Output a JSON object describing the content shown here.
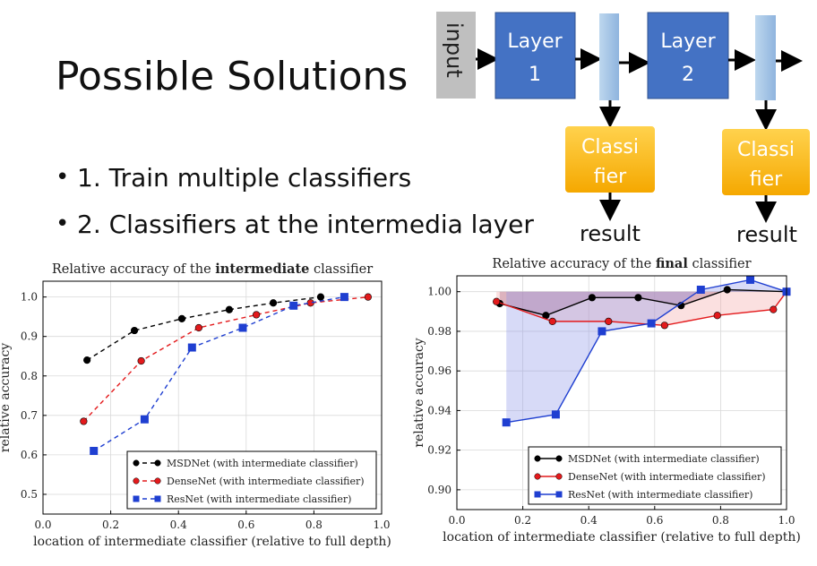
{
  "slide": {
    "title": "Possible Solutions",
    "bullets": [
      "1. Train multiple classifiers",
      "2. Classifiers at the intermedia layer"
    ]
  },
  "diagram": {
    "input_label": "input",
    "layer1_line1": "Layer",
    "layer1_line2": "1",
    "layer2_line1": "Layer",
    "layer2_line2": "2",
    "classifier_line1": "Classi",
    "classifier_line2": "fier",
    "result_label": "result",
    "colors": {
      "layer": "#4472c4",
      "classifier": "#ffc000",
      "input": "#bfbfbf",
      "connector": "#9dc3e6"
    }
  },
  "chart_data": [
    {
      "type": "line",
      "title_prefix": "Relative accuracy of the ",
      "title_bold": "intermediate",
      "title_suffix": " classifier",
      "xlabel": "location of intermediate classifier (relative to full depth)",
      "ylabel": "relative accuracy",
      "xlim": [
        0.0,
        1.0
      ],
      "ylim": [
        0.45,
        1.04
      ],
      "xticks": [
        "0.0",
        "0.2",
        "0.4",
        "0.6",
        "0.8",
        "1.0"
      ],
      "yticks": [
        "0.5",
        "0.6",
        "0.7",
        "0.8",
        "0.9",
        "1.0"
      ],
      "grid": true,
      "legend_position": "bottom-right",
      "series": [
        {
          "name": "MSDNet (with intermediate classifier)",
          "color": "#000000",
          "marker": "circle",
          "dashed": true,
          "x": [
            0.13,
            0.27,
            0.41,
            0.55,
            0.68,
            0.82
          ],
          "y": [
            0.84,
            0.915,
            0.945,
            0.968,
            0.985,
            1.0
          ]
        },
        {
          "name": "DenseNet (with intermediate classifier)",
          "color": "#e31a1c",
          "marker": "circle",
          "dashed": true,
          "x": [
            0.12,
            0.29,
            0.46,
            0.63,
            0.79,
            0.96
          ],
          "y": [
            0.685,
            0.838,
            0.922,
            0.955,
            0.985,
            1.0
          ]
        },
        {
          "name": "ResNet (with intermediate classifier)",
          "color": "#1f3fd1",
          "marker": "square",
          "dashed": true,
          "x": [
            0.15,
            0.3,
            0.44,
            0.59,
            0.74,
            0.89
          ],
          "y": [
            0.61,
            0.69,
            0.872,
            0.922,
            0.978,
            1.0
          ]
        }
      ]
    },
    {
      "type": "line",
      "title_prefix": "Relative accuracy of the ",
      "title_bold": "final",
      "title_suffix": " classifier",
      "xlabel": "location of intermediate classifier (relative to full depth)",
      "ylabel": "relative accuracy",
      "xlim": [
        0.0,
        1.0
      ],
      "ylim": [
        0.89,
        1.008
      ],
      "xticks": [
        "0.0",
        "0.2",
        "0.4",
        "0.6",
        "0.8",
        "1.0"
      ],
      "yticks": [
        "0.90",
        "0.92",
        "0.94",
        "0.96",
        "0.98",
        "1.00"
      ],
      "grid": true,
      "legend_position": "bottom-right",
      "reference": 1.0,
      "series": [
        {
          "name": "MSDNet (with intermediate classifier)",
          "color": "#000000",
          "fill": "#7a3d6b",
          "marker": "circle",
          "dashed": false,
          "x": [
            0.13,
            0.27,
            0.41,
            0.55,
            0.68,
            0.82,
            1.0
          ],
          "y": [
            0.994,
            0.988,
            0.997,
            0.997,
            0.993,
            1.001,
            1.0
          ]
        },
        {
          "name": "DenseNet (with intermediate classifier)",
          "color": "#e31a1c",
          "fill": "#f4a6a6",
          "marker": "circle",
          "dashed": false,
          "x": [
            0.12,
            0.29,
            0.46,
            0.63,
            0.79,
            0.96,
            1.0
          ],
          "y": [
            0.995,
            0.985,
            0.985,
            0.983,
            0.988,
            0.991,
            1.0
          ]
        },
        {
          "name": "ResNet (with intermediate classifier)",
          "color": "#1f3fd1",
          "fill": "#8c96e8",
          "marker": "square",
          "dashed": false,
          "x": [
            0.15,
            0.3,
            0.44,
            0.59,
            0.74,
            0.89,
            1.0
          ],
          "y": [
            0.934,
            0.938,
            0.98,
            0.984,
            1.001,
            1.006,
            1.0
          ]
        }
      ]
    }
  ]
}
